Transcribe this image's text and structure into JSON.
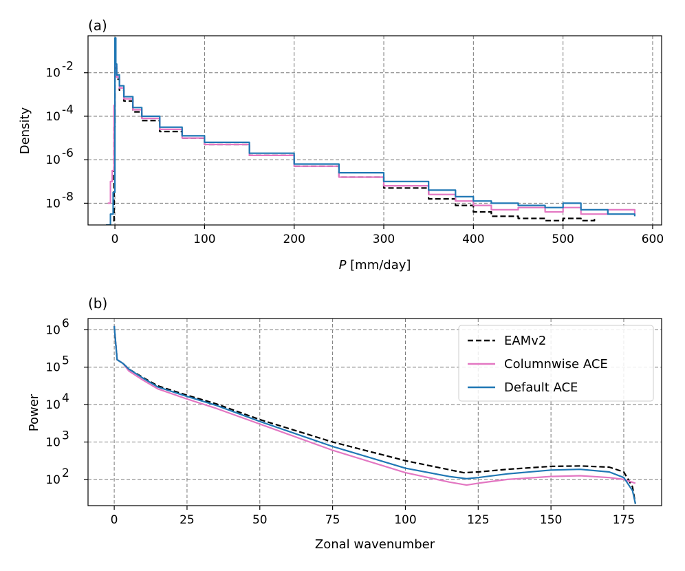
{
  "colors": {
    "eamv2": "#000000",
    "columnwise": "#e377c2",
    "default": "#1f77b4"
  },
  "chart_data": [
    {
      "type": "line",
      "title": "(a)",
      "xlabel_italic": "P",
      "xlabel_rest": " [mm/day]",
      "ylabel": "Density",
      "yscale": "log",
      "xlim": [
        -30,
        610
      ],
      "ylim_log10": [
        -9.0,
        -0.3
      ],
      "xticks": [
        0,
        100,
        200,
        300,
        400,
        500,
        600
      ],
      "xtick_labels": [
        "0",
        "100",
        "200",
        "300",
        "400",
        "500",
        "600"
      ],
      "yticks_log10": [
        -2,
        -4,
        -6,
        -8
      ],
      "ytick_labels": [
        "10",
        "10",
        "10",
        "10"
      ],
      "ytick_exponents": [
        "-2",
        "-4",
        "-6",
        "-8"
      ],
      "grid": true,
      "series": [
        {
          "name": "EAMv2",
          "style": "dashed-step",
          "x": [
            -2,
            -1,
            0,
            1,
            2,
            5,
            10,
            20,
            30,
            50,
            75,
            100,
            150,
            200,
            250,
            300,
            350,
            380,
            400,
            420,
            450,
            480,
            500,
            520,
            535
          ],
          "log10_y": [
            -8.8,
            -4.5,
            -0.9,
            -1.8,
            -2.3,
            -2.8,
            -3.3,
            -3.8,
            -4.2,
            -4.7,
            -5.0,
            -5.3,
            -5.8,
            -6.3,
            -6.8,
            -7.3,
            -7.8,
            -8.1,
            -8.4,
            -8.6,
            -8.7,
            -8.8,
            -8.7,
            -8.8,
            -8.7
          ]
        },
        {
          "name": "Columnwise ACE",
          "style": "step",
          "x": [
            -8,
            -5,
            -3,
            -1,
            0,
            1,
            2,
            5,
            10,
            20,
            30,
            50,
            75,
            100,
            150,
            200,
            250,
            300,
            350,
            380,
            400,
            420,
            450,
            480,
            500,
            520,
            550,
            580
          ],
          "log10_y": [
            -8.0,
            -7.0,
            -6.5,
            -3.5,
            -0.5,
            -1.7,
            -2.2,
            -2.7,
            -3.2,
            -3.7,
            -4.1,
            -4.6,
            -5.0,
            -5.3,
            -5.8,
            -6.3,
            -6.8,
            -7.2,
            -7.6,
            -7.9,
            -8.1,
            -8.3,
            -8.2,
            -8.4,
            -8.2,
            -8.5,
            -8.3,
            -8.5
          ]
        },
        {
          "name": "Default ACE",
          "style": "step",
          "x": [
            -10,
            -5,
            -2,
            0,
            1,
            2,
            5,
            10,
            20,
            30,
            50,
            75,
            100,
            150,
            200,
            250,
            300,
            350,
            380,
            400,
            420,
            450,
            480,
            500,
            520,
            550,
            580
          ],
          "log10_y": [
            -9.0,
            -8.5,
            -7.5,
            -0.4,
            -1.6,
            -2.1,
            -2.6,
            -3.1,
            -3.6,
            -4.0,
            -4.5,
            -4.9,
            -5.2,
            -5.7,
            -6.2,
            -6.6,
            -7.0,
            -7.4,
            -7.7,
            -7.9,
            -8.0,
            -8.1,
            -8.2,
            -8.0,
            -8.3,
            -8.5,
            -8.6
          ]
        }
      ]
    },
    {
      "type": "line",
      "title": "(b)",
      "xlabel": "Zonal wavenumber",
      "ylabel": "Power",
      "yscale": "log",
      "xlim": [
        -9,
        188
      ],
      "ylim_log10": [
        1.3,
        6.3
      ],
      "xticks": [
        0,
        25,
        50,
        75,
        100,
        125,
        150,
        175
      ],
      "xtick_labels": [
        "0",
        "25",
        "50",
        "75",
        "100",
        "125",
        "150",
        "175"
      ],
      "yticks_log10": [
        6,
        5,
        4,
        3,
        2
      ],
      "ytick_labels": [
        "10",
        "10",
        "10",
        "10",
        "10"
      ],
      "ytick_exponents": [
        "6",
        "5",
        "4",
        "3",
        "2"
      ],
      "grid": true,
      "legend_placement": "top-right",
      "legend": [
        "EAMv2",
        "Columnwise ACE",
        "Default ACE"
      ],
      "series": [
        {
          "name": "EAMv2",
          "style": "dashed",
          "x": [
            0,
            1,
            3,
            5,
            10,
            15,
            25,
            35,
            50,
            75,
            100,
            120,
            125,
            135,
            150,
            160,
            170,
            175,
            178,
            179
          ],
          "log10_y": [
            6.1,
            5.2,
            5.1,
            4.95,
            4.72,
            4.5,
            4.25,
            4.02,
            3.6,
            3.0,
            2.5,
            2.18,
            2.2,
            2.27,
            2.35,
            2.36,
            2.33,
            2.2,
            1.8,
            1.35
          ]
        },
        {
          "name": "Columnwise ACE",
          "style": "solid",
          "x": [
            0,
            1,
            3,
            5,
            10,
            15,
            25,
            35,
            50,
            75,
            100,
            115,
            121,
            125,
            135,
            150,
            160,
            170,
            175,
            179
          ],
          "log10_y": [
            6.1,
            5.2,
            5.1,
            4.9,
            4.65,
            4.42,
            4.15,
            3.9,
            3.48,
            2.78,
            2.18,
            1.93,
            1.85,
            1.9,
            2.0,
            2.08,
            2.1,
            2.05,
            2.0,
            1.9
          ]
        },
        {
          "name": "Default ACE",
          "style": "solid",
          "x": [
            0,
            1,
            3,
            5,
            10,
            15,
            25,
            35,
            50,
            75,
            100,
            115,
            121,
            125,
            135,
            150,
            160,
            170,
            175,
            178,
            179
          ],
          "log10_y": [
            6.1,
            5.2,
            5.1,
            4.95,
            4.7,
            4.47,
            4.22,
            3.98,
            3.55,
            2.88,
            2.3,
            2.08,
            2.02,
            2.05,
            2.15,
            2.25,
            2.27,
            2.2,
            2.05,
            1.7,
            1.35
          ]
        }
      ]
    }
  ]
}
